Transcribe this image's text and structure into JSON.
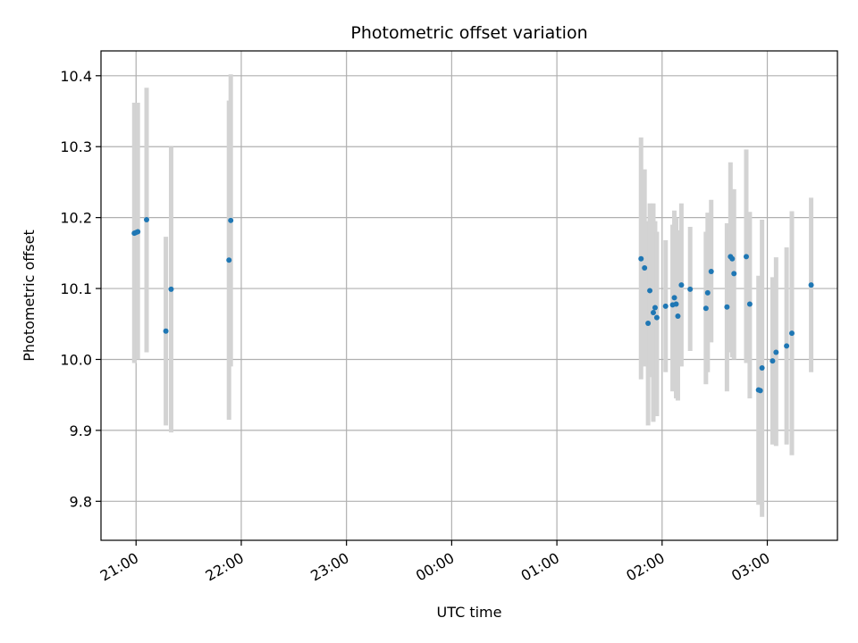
{
  "chart_data": {
    "type": "scatter",
    "title": "Photometric offset variation",
    "xlabel": "UTC time",
    "ylabel": "Photometric offset",
    "x_axis_kind": "time",
    "xlim": [
      "20:40",
      "03:40"
    ],
    "ylim": [
      9.745,
      10.435
    ],
    "x_ticks": [
      "21:00",
      "22:00",
      "23:00",
      "00:00",
      "01:00",
      "02:00",
      "03:00"
    ],
    "y_ticks": [
      9.8,
      9.9,
      10.0,
      10.1,
      10.2,
      10.3,
      10.4
    ],
    "grid": true,
    "marker_color": "#1f77b4",
    "errorbar_color": "#d3d3d3",
    "points": [
      {
        "t": "20:59",
        "y": 10.178,
        "lo": 9.995,
        "hi": 10.362
      },
      {
        "t": "21:00",
        "y": 10.179,
        "lo": 10.0,
        "hi": 10.362
      },
      {
        "t": "21:01",
        "y": 10.18,
        "lo": 10.0,
        "hi": 10.362
      },
      {
        "t": "21:06",
        "y": 10.197,
        "lo": 10.01,
        "hi": 10.383
      },
      {
        "t": "21:17",
        "y": 10.04,
        "lo": 9.907,
        "hi": 10.173
      },
      {
        "t": "21:20",
        "y": 10.099,
        "lo": 9.897,
        "hi": 10.3
      },
      {
        "t": "21:53",
        "y": 10.14,
        "lo": 9.915,
        "hi": 10.365
      },
      {
        "t": "21:54",
        "y": 10.196,
        "lo": 9.99,
        "hi": 10.402
      },
      {
        "t": "01:48",
        "y": 10.142,
        "lo": 9.972,
        "hi": 10.313
      },
      {
        "t": "01:50",
        "y": 10.129,
        "lo": 9.99,
        "hi": 10.268
      },
      {
        "t": "01:52",
        "y": 10.051,
        "lo": 9.907,
        "hi": 10.195
      },
      {
        "t": "01:53",
        "y": 10.097,
        "lo": 9.975,
        "hi": 10.22
      },
      {
        "t": "01:55",
        "y": 10.066,
        "lo": 9.912,
        "hi": 10.22
      },
      {
        "t": "01:56",
        "y": 10.073,
        "lo": 9.95,
        "hi": 10.195
      },
      {
        "t": "01:57",
        "y": 10.059,
        "lo": 9.92,
        "hi": 10.18
      },
      {
        "t": "02:02",
        "y": 10.075,
        "lo": 9.982,
        "hi": 10.168
      },
      {
        "t": "02:06",
        "y": 10.077,
        "lo": 9.955,
        "hi": 10.19
      },
      {
        "t": "02:07",
        "y": 10.087,
        "lo": 9.96,
        "hi": 10.21
      },
      {
        "t": "02:08",
        "y": 10.078,
        "lo": 9.945,
        "hi": 10.2
      },
      {
        "t": "02:09",
        "y": 10.061,
        "lo": 9.942,
        "hi": 10.182
      },
      {
        "t": "02:11",
        "y": 10.105,
        "lo": 9.99,
        "hi": 10.22
      },
      {
        "t": "02:16",
        "y": 10.099,
        "lo": 10.012,
        "hi": 10.187
      },
      {
        "t": "02:25",
        "y": 10.072,
        "lo": 9.965,
        "hi": 10.18
      },
      {
        "t": "02:26",
        "y": 10.094,
        "lo": 9.982,
        "hi": 10.207
      },
      {
        "t": "02:28",
        "y": 10.124,
        "lo": 10.024,
        "hi": 10.225
      },
      {
        "t": "02:37",
        "y": 10.074,
        "lo": 9.955,
        "hi": 10.192
      },
      {
        "t": "02:39",
        "y": 10.145,
        "lo": 10.01,
        "hi": 10.278
      },
      {
        "t": "02:40",
        "y": 10.142,
        "lo": 10.003,
        "hi": 10.24
      },
      {
        "t": "02:41",
        "y": 10.121,
        "lo": 10.0,
        "hi": 10.24
      },
      {
        "t": "02:48",
        "y": 10.145,
        "lo": 9.995,
        "hi": 10.296
      },
      {
        "t": "02:50",
        "y": 10.078,
        "lo": 9.945,
        "hi": 10.208
      },
      {
        "t": "02:55",
        "y": 9.957,
        "lo": 9.795,
        "hi": 10.118
      },
      {
        "t": "02:56",
        "y": 9.956,
        "lo": 9.796,
        "hi": 10.117
      },
      {
        "t": "02:57",
        "y": 9.988,
        "lo": 9.778,
        "hi": 10.197
      },
      {
        "t": "03:03",
        "y": 9.998,
        "lo": 9.88,
        "hi": 10.116
      },
      {
        "t": "03:05",
        "y": 10.01,
        "lo": 9.878,
        "hi": 10.144
      },
      {
        "t": "03:11",
        "y": 10.019,
        "lo": 9.88,
        "hi": 10.158
      },
      {
        "t": "03:14",
        "y": 10.037,
        "lo": 9.865,
        "hi": 10.209
      },
      {
        "t": "03:25",
        "y": 10.105,
        "lo": 9.982,
        "hi": 10.228
      }
    ]
  }
}
